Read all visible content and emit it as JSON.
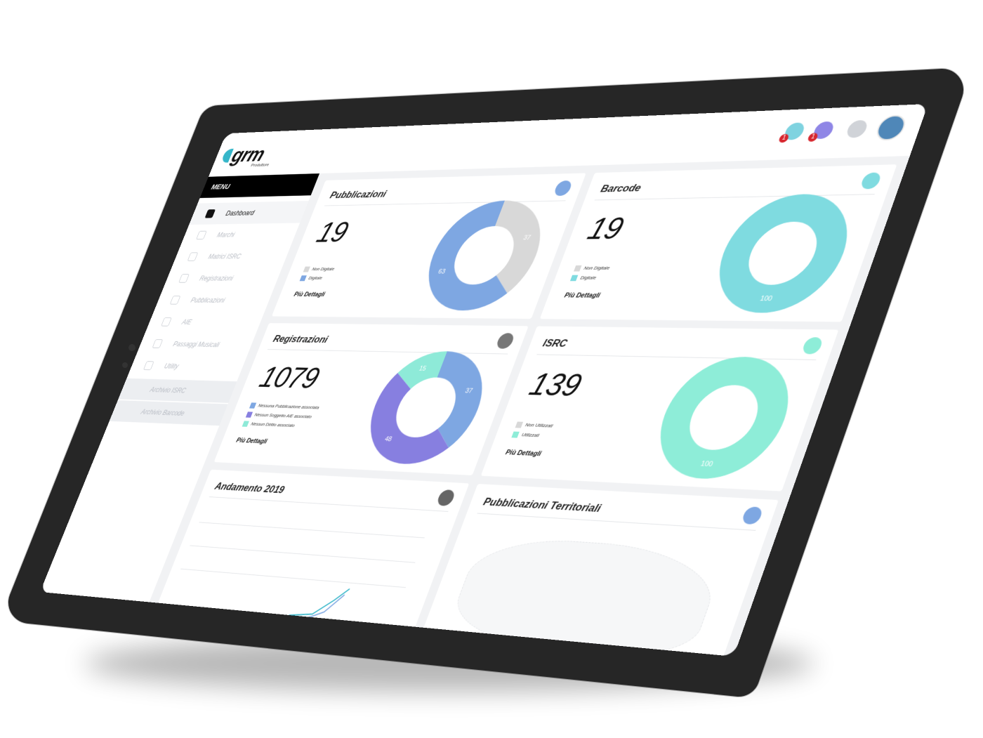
{
  "header": {
    "logo": "grm",
    "subtitle": "Produttore",
    "badges": [
      "1",
      "1"
    ]
  },
  "menu": {
    "title": "MENU",
    "items": [
      "Dashboard",
      "Marchi",
      "Matrici ISRC",
      "Registrazioni",
      "Pubblicazioni",
      "AIE",
      "Passaggi Musicali",
      "Utility"
    ],
    "submenu": [
      "Archivio ISRC",
      "Archivio Barcode"
    ]
  },
  "cards": [
    {
      "title": "Pubblicazioni",
      "count": 19,
      "legend": [
        "Non Digitale",
        "Digitale"
      ],
      "values": [
        37,
        63
      ],
      "colors": [
        "#d8d8d8",
        "#7ea7e2"
      ],
      "link": "Più Dettagli"
    },
    {
      "title": "Barcode",
      "count": 19,
      "legend": [
        "Non Digitale",
        "Digitale"
      ],
      "values": [
        0,
        100
      ],
      "colors": [
        "#d8d8d8",
        "#7fdbe0"
      ],
      "link": "Più Dettagli"
    },
    {
      "title": "Registrazioni",
      "count": 1079,
      "legend": [
        "Nessuna Pubblicazione associata",
        "Nessun Soggetto AIE associato",
        "Nessun Diritto associato"
      ],
      "values": [
        37,
        48,
        15
      ],
      "colors": [
        "#7ea7e2",
        "#877fe0",
        "#8eead8"
      ],
      "link": "Più Dettagli"
    },
    {
      "title": "ISRC",
      "count": 139,
      "legend": [
        "Non Utilizzati",
        "Utilizzati"
      ],
      "values": [
        0,
        100
      ],
      "colors": [
        "#d8d8d8",
        "#8eedd8"
      ],
      "link": "Più Dettagli"
    }
  ],
  "andamento": {
    "title": "Andamento 2019"
  },
  "territoriali": {
    "title": "Pubblicazioni Territoriali"
  }
}
